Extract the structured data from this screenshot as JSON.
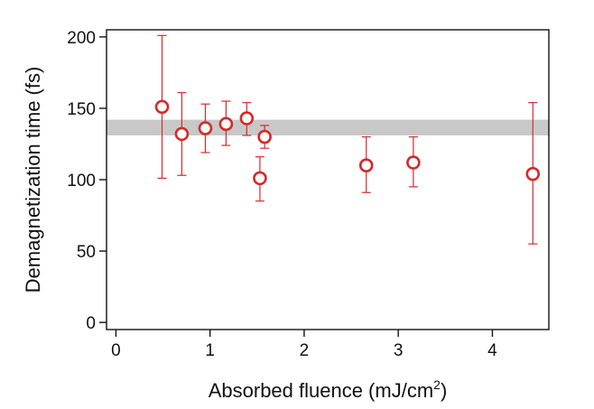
{
  "chart_data": {
    "type": "scatter",
    "xlabel": "Absorbed fluence (mJ/cm",
    "xlabel_superscript": "2",
    "xlabel_suffix": ")",
    "ylabel": "Demagnetization time (fs)",
    "xlim": [
      -0.1,
      4.6
    ],
    "ylim": [
      -5,
      205
    ],
    "x_ticks": [
      0,
      1,
      2,
      3,
      4
    ],
    "y_ticks": [
      0,
      50,
      100,
      150,
      200
    ],
    "grid": false,
    "band": {
      "y_low": 131,
      "y_high": 142,
      "color": "#c8c8c8"
    },
    "series": [
      {
        "marker": "open-circle",
        "color": "#d42a2a",
        "points": [
          {
            "x": 0.49,
            "y": 151,
            "err_low": 101,
            "err_high": 201
          },
          {
            "x": 0.7,
            "y": 132,
            "err_low": 103,
            "err_high": 161
          },
          {
            "x": 0.95,
            "y": 136,
            "err_low": 119,
            "err_high": 153
          },
          {
            "x": 1.17,
            "y": 139,
            "err_low": 124,
            "err_high": 155
          },
          {
            "x": 1.39,
            "y": 143,
            "err_low": 131,
            "err_high": 154
          },
          {
            "x": 1.53,
            "y": 101,
            "err_low": 85,
            "err_high": 116
          },
          {
            "x": 1.58,
            "y": 130,
            "err_low": 122,
            "err_high": 138
          },
          {
            "x": 2.66,
            "y": 110,
            "err_low": 91,
            "err_high": 130
          },
          {
            "x": 3.16,
            "y": 112,
            "err_low": 95,
            "err_high": 130
          },
          {
            "x": 4.43,
            "y": 104,
            "err_low": 55,
            "err_high": 154
          }
        ]
      }
    ]
  }
}
